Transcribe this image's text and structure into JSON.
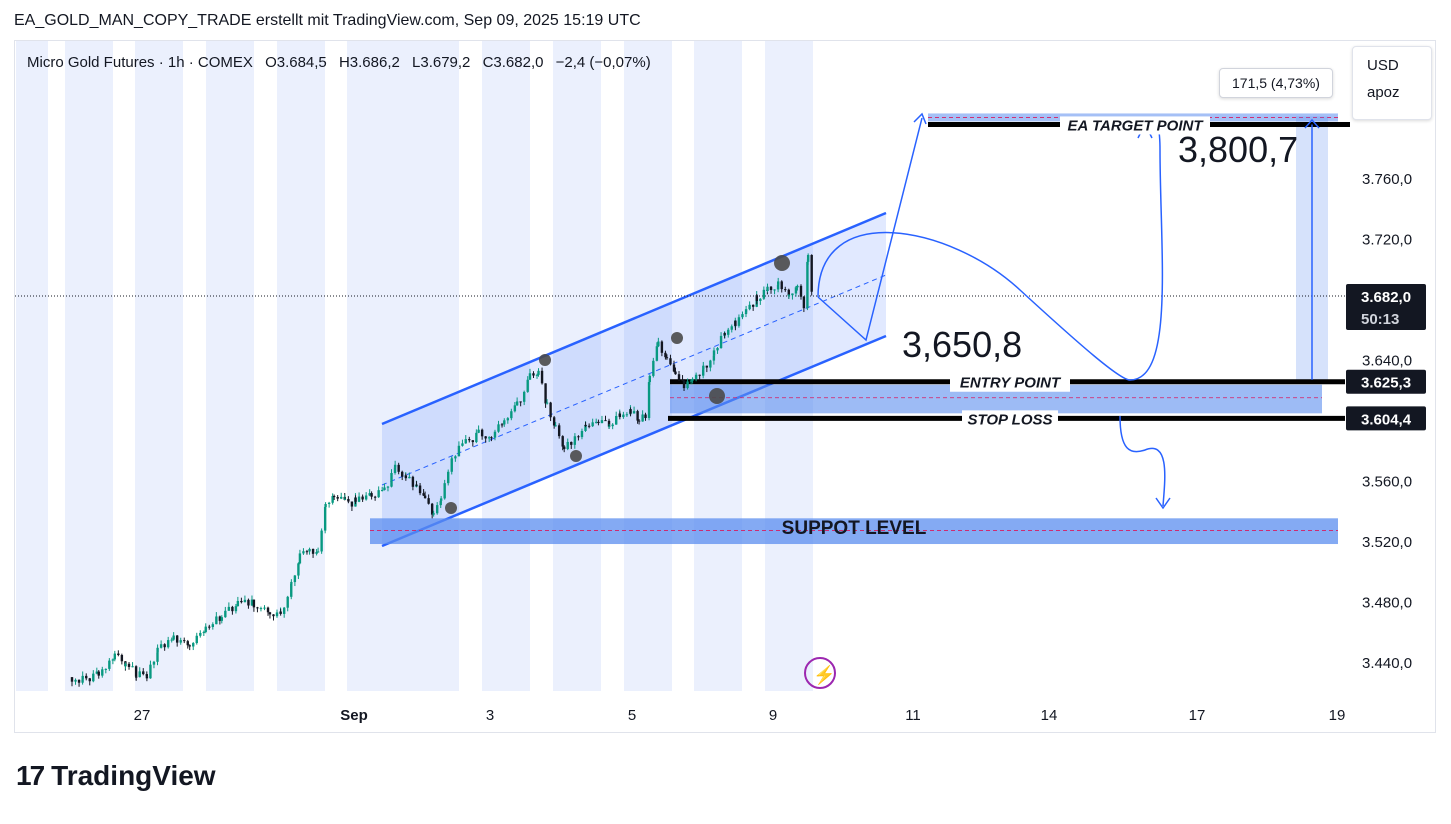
{
  "header": {
    "text": "EA_GOLD_MAN_COPY_TRADE erstellt mit TradingView.com, Sep 09, 2025 15:19 UTC"
  },
  "legend": {
    "symbol": "Micro Gold Futures · 1h · COMEX",
    "open": "O3.684,5",
    "high": "H3.686,2",
    "low": "L3.679,2",
    "close": "C3.682,0",
    "change": "−2,4 (−0,07%)"
  },
  "unit": {
    "currency": "USD",
    "unit": "apoz"
  },
  "measure_label": "171,5 (4,73%)",
  "price_labels": {
    "current": "3.682,0",
    "countdown": "50:13",
    "entry": "3.625,3",
    "stop": "3.604,4"
  },
  "annotations": {
    "target_price": "3,800,7",
    "mid_price": "3,650,8",
    "entry_label": "ENTRY POINT",
    "stop_label": "STOP LOSS",
    "target_label": "EA TARGET POINT",
    "support_label": "SUPPOT LEVEL"
  },
  "colors": {
    "up": "#089981",
    "down": "#131722",
    "accent": "#2962ff",
    "zone": "#5b8def"
  },
  "brand": {
    "name": "TradingView",
    "mark": "17"
  },
  "chart_data": {
    "type": "candlestick",
    "title": "Micro Gold Futures · 1h · COMEX",
    "y_ticks": [
      "3.760,0",
      "3.720,0",
      "3.680,0",
      "3.640,0",
      "3.560,0",
      "3.520,0",
      "3.480,0",
      "3.440,0"
    ],
    "y_tick_values": [
      3760,
      3720,
      3680,
      3640,
      3560,
      3520,
      3480,
      3440
    ],
    "x_ticks": [
      "27",
      "Sep",
      "3",
      "5",
      "9",
      "11",
      "14",
      "17",
      "19"
    ],
    "ylim": [
      3426,
      3814
    ],
    "levels": {
      "target": 3800.7,
      "entry": 3625.3,
      "stop": 3604.4,
      "support_top": 3535,
      "support_bottom": 3518,
      "current": 3682.0
    },
    "price_path": [
      [
        0,
        3430
      ],
      [
        10,
        3428
      ],
      [
        25,
        3432
      ],
      [
        40,
        3445
      ],
      [
        50,
        3440
      ],
      [
        60,
        3432
      ],
      [
        70,
        3430
      ],
      [
        80,
        3448
      ],
      [
        95,
        3456
      ],
      [
        110,
        3452
      ],
      [
        125,
        3462
      ],
      [
        140,
        3470
      ],
      [
        155,
        3478
      ],
      [
        170,
        3479
      ],
      [
        185,
        3474
      ],
      [
        195,
        3471
      ],
      [
        205,
        3492
      ],
      [
        213,
        3510
      ],
      [
        222,
        3516
      ],
      [
        230,
        3511
      ],
      [
        237,
        3545
      ],
      [
        245,
        3550
      ],
      [
        255,
        3545
      ],
      [
        265,
        3546
      ],
      [
        280,
        3550
      ],
      [
        292,
        3553
      ],
      [
        302,
        3568
      ],
      [
        312,
        3562
      ],
      [
        322,
        3555
      ],
      [
        330,
        3546
      ],
      [
        338,
        3538
      ],
      [
        345,
        3548
      ],
      [
        355,
        3575
      ],
      [
        368,
        3585
      ],
      [
        380,
        3591
      ],
      [
        392,
        3590
      ],
      [
        404,
        3600
      ],
      [
        416,
        3610
      ],
      [
        428,
        3628
      ],
      [
        436,
        3632
      ],
      [
        444,
        3610
      ],
      [
        452,
        3595
      ],
      [
        460,
        3582
      ],
      [
        470,
        3588
      ],
      [
        480,
        3595
      ],
      [
        492,
        3598
      ],
      [
        502,
        3596
      ],
      [
        512,
        3602
      ],
      [
        522,
        3605
      ],
      [
        530,
        3600
      ],
      [
        536,
        3602
      ],
      [
        540,
        3630
      ],
      [
        548,
        3650
      ],
      [
        556,
        3640
      ],
      [
        564,
        3628
      ],
      [
        572,
        3622
      ],
      [
        580,
        3628
      ],
      [
        590,
        3634
      ],
      [
        600,
        3645
      ],
      [
        610,
        3658
      ],
      [
        620,
        3665
      ],
      [
        630,
        3672
      ],
      [
        640,
        3680
      ],
      [
        650,
        3687
      ],
      [
        660,
        3690
      ],
      [
        670,
        3684
      ],
      [
        678,
        3690
      ],
      [
        684,
        3676
      ],
      [
        688,
        3710
      ],
      [
        692,
        3682
      ]
    ]
  }
}
